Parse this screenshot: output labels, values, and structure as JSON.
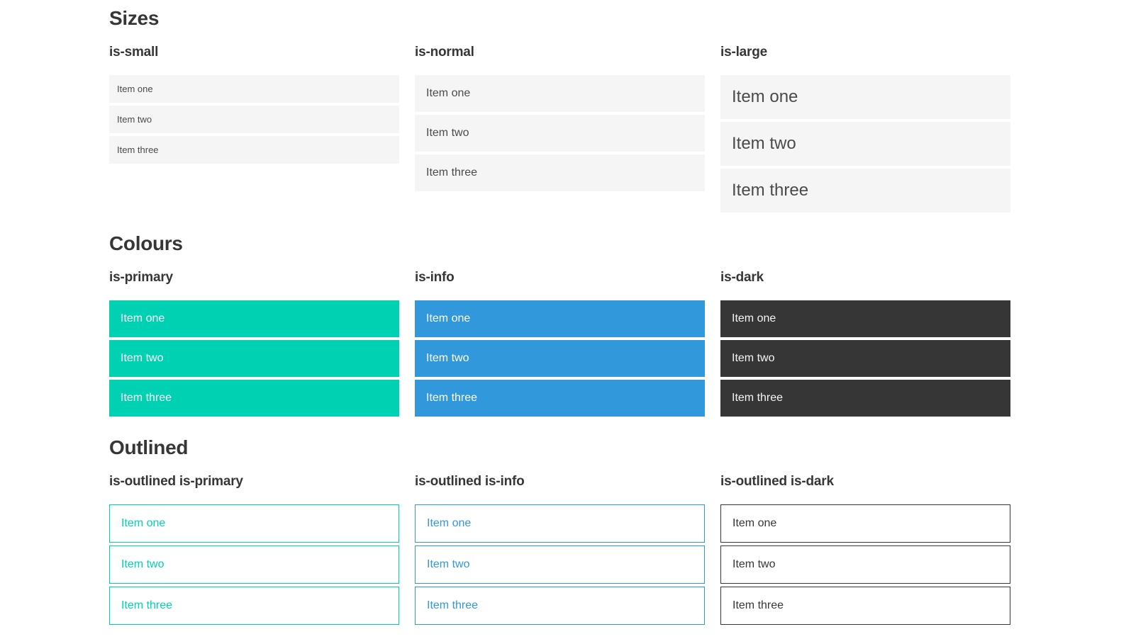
{
  "colors": {
    "page_background": "#ffffff",
    "heading_text": "#363636",
    "item_background": "#f5f5f5",
    "item_text": "#4a4a4a",
    "primary": "#00d1b2",
    "info": "#3298dc",
    "dark": "#363636",
    "on_color_text": "#ffffff"
  },
  "sections": [
    {
      "title": "Sizes",
      "groups": [
        {
          "label": "is-small",
          "variant": "is-small",
          "items": [
            "Item one",
            "Item two",
            "Item three"
          ]
        },
        {
          "label": "is-normal",
          "variant": "is-normal",
          "items": [
            "Item one",
            "Item two",
            "Item three"
          ]
        },
        {
          "label": "is-large",
          "variant": "is-large",
          "items": [
            "Item one",
            "Item two",
            "Item three"
          ]
        }
      ]
    },
    {
      "title": "Colours",
      "groups": [
        {
          "label": "is-primary",
          "variant": "is-primary",
          "items": [
            "Item one",
            "Item two",
            "Item three"
          ]
        },
        {
          "label": "is-info",
          "variant": "is-info",
          "items": [
            "Item one",
            "Item two",
            "Item three"
          ]
        },
        {
          "label": "is-dark",
          "variant": "is-dark",
          "items": [
            "Item one",
            "Item two",
            "Item three"
          ]
        }
      ]
    },
    {
      "title": "Outlined",
      "groups": [
        {
          "label": "is-outlined is-primary",
          "variant": "is-outlined is-primary",
          "items": [
            "Item one",
            "Item two",
            "Item three"
          ]
        },
        {
          "label": "is-outlined is-info",
          "variant": "is-outlined is-info",
          "items": [
            "Item one",
            "Item two",
            "Item three"
          ]
        },
        {
          "label": "is-outlined is-dark",
          "variant": "is-outlined is-dark",
          "items": [
            "Item one",
            "Item two",
            "Item three"
          ]
        }
      ]
    }
  ]
}
